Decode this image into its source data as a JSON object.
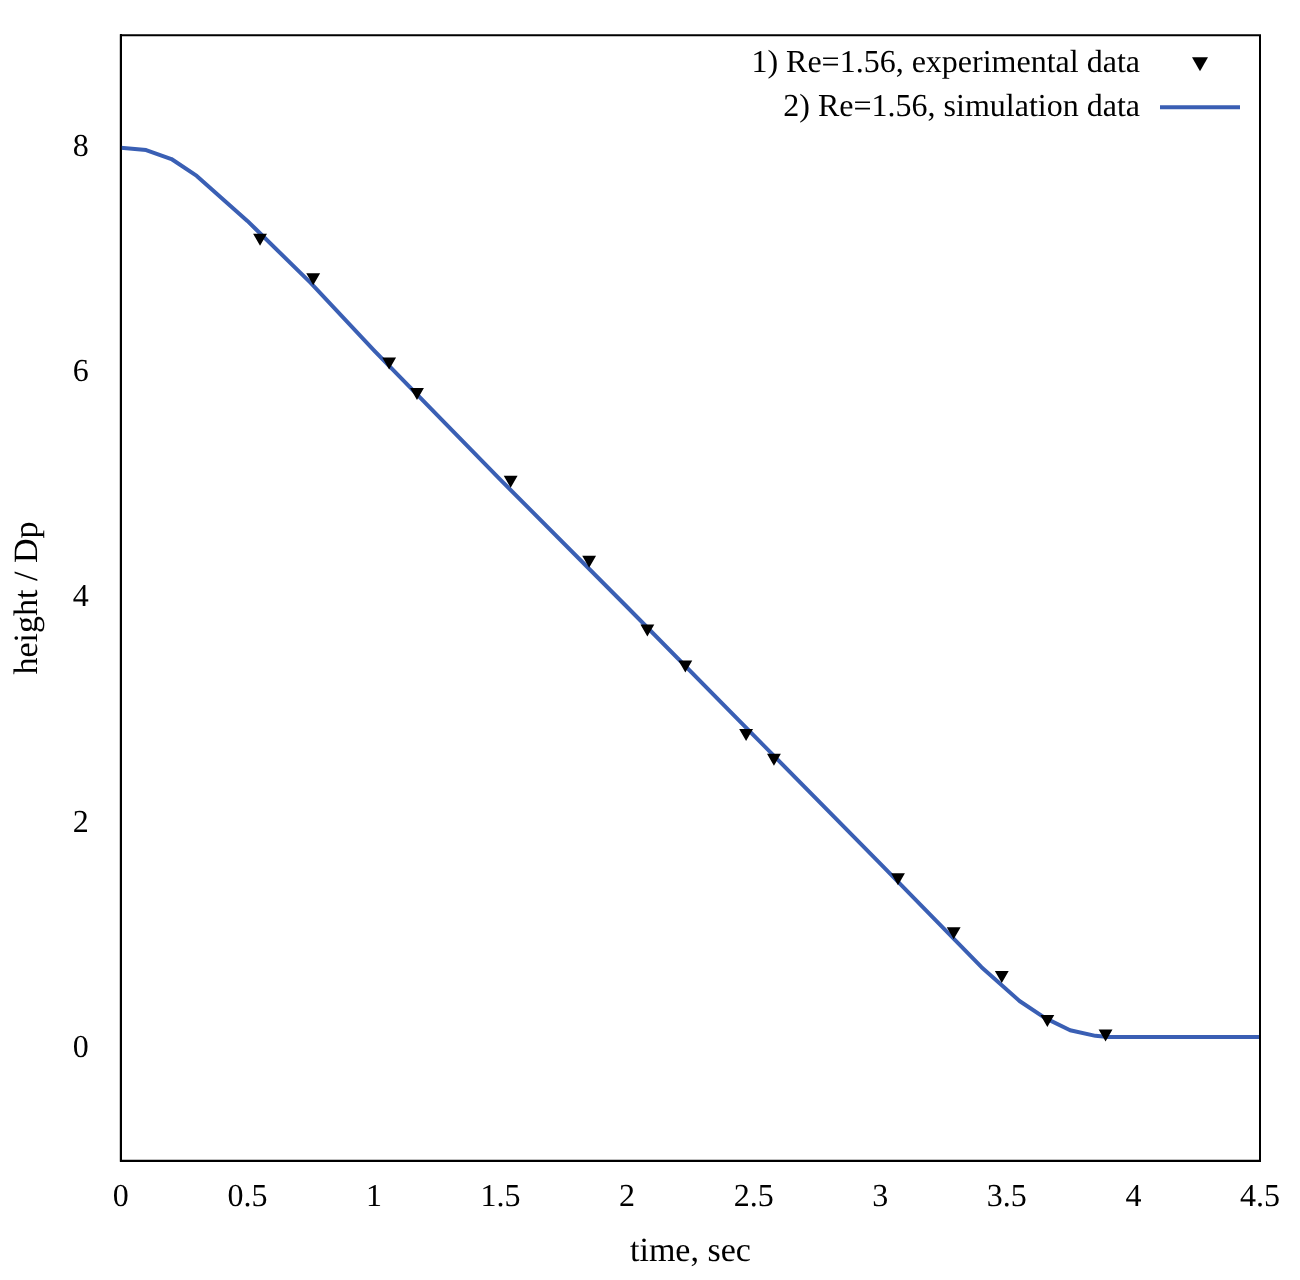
{
  "chart_data": {
    "type": "line",
    "xlabel": "time, sec",
    "ylabel": "height / Dp",
    "xlim": [
      0,
      4.5
    ],
    "ylim": [
      -1,
      9
    ],
    "xticks": [
      0,
      0.5,
      1,
      1.5,
      2,
      2.5,
      3,
      3.5,
      4,
      4.5
    ],
    "yticks": [
      0,
      2,
      4,
      6,
      8
    ],
    "grid": false,
    "legend": "top right",
    "series": [
      {
        "type": "scatter",
        "name": "1) Re=1.56, experimental data",
        "color": "#000000",
        "marker": "triangle",
        "x": [
          0.55,
          0.76,
          1.06,
          1.17,
          1.54,
          1.85,
          2.08,
          2.23,
          2.47,
          2.58,
          3.07,
          3.29,
          3.48,
          3.66,
          3.89
        ],
        "values": [
          7.2,
          6.85,
          6.1,
          5.83,
          5.05,
          4.34,
          3.73,
          3.41,
          2.8,
          2.58,
          1.52,
          1.04,
          0.65,
          0.26,
          0.13
        ]
      },
      {
        "type": "line",
        "name": "2) Re=1.56, simulation data",
        "color": "#3a5fb4",
        "marker": "none",
        "line_style": "solid",
        "x": [
          0,
          0.1,
          0.2,
          0.3,
          0.5,
          0.75,
          1,
          1.5,
          2,
          2.5,
          3,
          3.4,
          3.55,
          3.65,
          3.75,
          3.85,
          3.9,
          4.5
        ],
        "values": [
          8,
          7.98,
          7.9,
          7.75,
          7.35,
          6.8,
          6.2,
          5.05,
          3.92,
          2.78,
          1.64,
          0.72,
          0.42,
          0.27,
          0.16,
          0.11,
          0.1,
          0.1
        ]
      }
    ]
  }
}
